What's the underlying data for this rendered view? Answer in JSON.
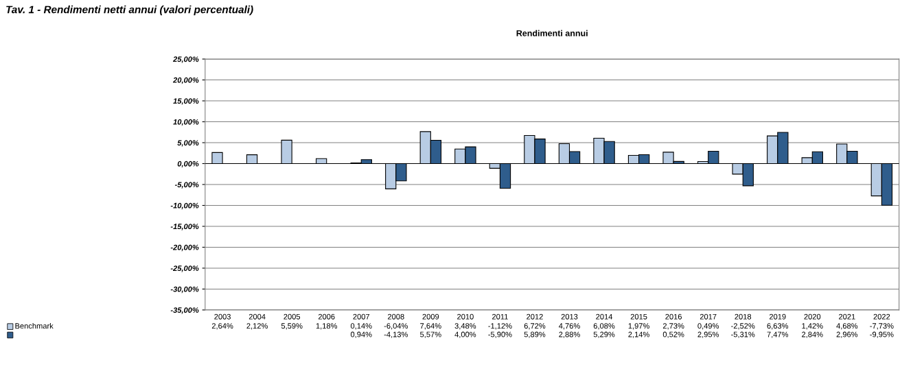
{
  "chart_data": {
    "type": "bar",
    "title": "Rendimenti annui",
    "annotations": [
      "Tav. 1 - Rendimenti netti annui (valori percentuali)"
    ],
    "categories": [
      "2003",
      "2004",
      "2005",
      "2006",
      "2007",
      "2008",
      "2009",
      "2010",
      "2011",
      "2012",
      "2013",
      "2014",
      "2015",
      "2016",
      "2017",
      "2018",
      "2019",
      "2020",
      "2021",
      "2022"
    ],
    "series": [
      {
        "name": "Benchmark",
        "color": "#b8cce4",
        "values": [
          2.64,
          2.12,
          5.59,
          1.18,
          0.14,
          -6.04,
          7.64,
          3.48,
          -1.12,
          6.72,
          4.76,
          6.08,
          1.97,
          2.73,
          0.49,
          -2.52,
          6.63,
          1.42,
          4.68,
          -7.73
        ],
        "value_labels": [
          "2,64%",
          "2,12%",
          "5,59%",
          "1,18%",
          "0,14%",
          "-6,04%",
          "7,64%",
          "3,48%",
          "-1,12%",
          "6,72%",
          "4,76%",
          "6,08%",
          "1,97%",
          "2,73%",
          "0,49%",
          "-2,52%",
          "6,63%",
          "1,42%",
          "4,68%",
          "-7,73%"
        ]
      },
      {
        "color": "#2f5d8c",
        "values": [
          null,
          null,
          null,
          null,
          0.94,
          -4.13,
          5.57,
          4.0,
          -5.9,
          5.89,
          2.88,
          5.29,
          2.14,
          0.52,
          2.95,
          -5.31,
          7.47,
          2.84,
          2.96,
          -9.95
        ],
        "value_labels": [
          null,
          null,
          null,
          null,
          "0,94%",
          "-4,13%",
          "5,57%",
          "4,00%",
          "-5,90%",
          "5,89%",
          "2,88%",
          "5,29%",
          "2,14%",
          "0,52%",
          "2,95%",
          "-5,31%",
          "7,47%",
          "2,84%",
          "2,96%",
          "-9,95%"
        ]
      }
    ],
    "ylim": [
      -35,
      25
    ],
    "yticks": [
      {
        "value": 25,
        "label": "25,00%"
      },
      {
        "value": 20,
        "label": "20,00%"
      },
      {
        "value": 15,
        "label": "15,00%"
      },
      {
        "value": 10,
        "label": "10,00%"
      },
      {
        "value": 5,
        "label": "5,00%"
      },
      {
        "value": 0,
        "label": "0,00%"
      },
      {
        "value": -5,
        "label": "-5,00%"
      },
      {
        "value": -10,
        "label": "-10,00%"
      },
      {
        "value": -15,
        "label": "-15,00%"
      },
      {
        "value": -20,
        "label": "-20,00%"
      },
      {
        "value": -25,
        "label": "-25,00%"
      },
      {
        "value": -30,
        "label": "-30,00%"
      },
      {
        "value": -35,
        "label": "-35,00%"
      }
    ],
    "grid": "y",
    "legend": "bottom left"
  }
}
